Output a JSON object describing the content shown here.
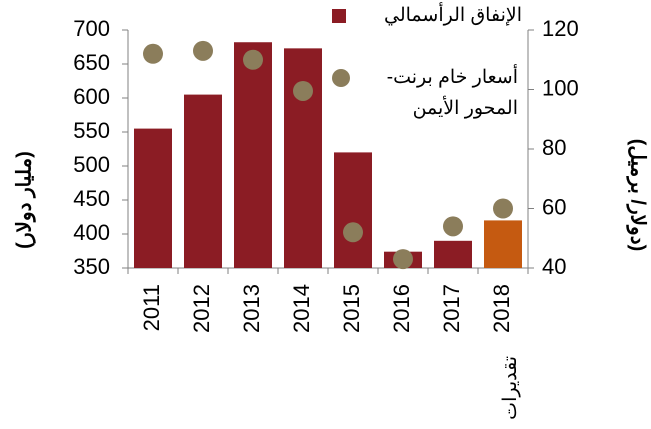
{
  "chart_data": {
    "type": "bar",
    "categories": [
      "2011",
      "2012",
      "2013",
      "2014",
      "2015",
      "2016",
      "2017",
      "2018"
    ],
    "annotations": [
      {
        "text": "تقديرات"
      }
    ],
    "series": [
      {
        "name": "الإنفاق الرأسمالي",
        "type": "bar",
        "color": "#8b1c24",
        "colors": [
          "#8b1c24",
          "#8b1c24",
          "#8b1c24",
          "#8b1c24",
          "#8b1c24",
          "#8b1c24",
          "#8b1c24",
          "#c55a11"
        ],
        "values": [
          555,
          605,
          682,
          673,
          520,
          374,
          390,
          420
        ]
      },
      {
        "name": "أسعار خام برنت-\nالمحور الأيمن",
        "type": "scatter",
        "axis": "y2",
        "color": "#8b7d5b",
        "values": [
          112,
          113,
          110,
          99.5,
          52,
          43,
          54,
          60
        ]
      }
    ],
    "y_label": "(مليار دولار)",
    "y2_label": "(دولار/ برميل)",
    "ylim": [
      350,
      700
    ],
    "yticks": [
      350,
      400,
      450,
      500,
      550,
      600,
      650,
      700
    ],
    "y2lim": [
      40,
      120
    ],
    "y2ticks": [
      40,
      60,
      80,
      100,
      120
    ]
  }
}
